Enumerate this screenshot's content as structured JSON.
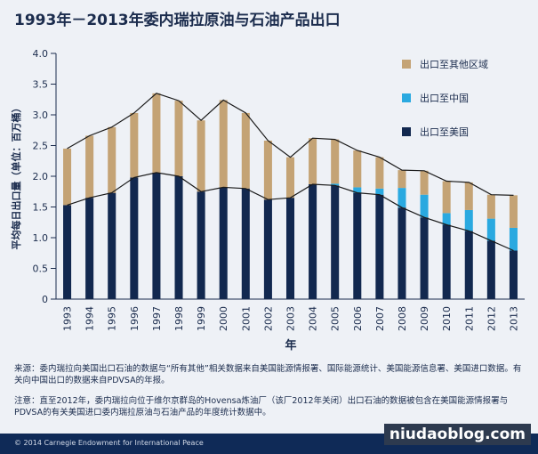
{
  "title": "1993年－2013年委内瑞拉原油与石油产品出口",
  "colors": {
    "background": "#eef1f6",
    "us": "#12284f",
    "china": "#2aa9e0",
    "other": "#c4a375",
    "line": "#1a1a1a",
    "footer": "#0f2a57"
  },
  "chart_data": {
    "type": "bar",
    "stacked": true,
    "xlabel": "年",
    "ylabel": "平均每日出口量（单位：百万桶）",
    "ylim": [
      0,
      4.0
    ],
    "yticks": [
      "0",
      "0.5",
      "1.0",
      "1.5",
      "2.0",
      "2.5",
      "3.0",
      "3.5",
      "4.0"
    ],
    "grid": false,
    "legend_placement": "top-right",
    "categories": [
      "1993",
      "1994",
      "1995",
      "1996",
      "1997",
      "1998",
      "1999",
      "2000",
      "2001",
      "2002",
      "2003",
      "2004",
      "2005",
      "2006",
      "2007",
      "2008",
      "2009",
      "2010",
      "2011",
      "2012",
      "2013"
    ],
    "series": [
      {
        "name": "出口至美国",
        "color": "#12284f",
        "values": [
          1.53,
          1.65,
          1.73,
          1.98,
          2.06,
          2.0,
          1.75,
          1.82,
          1.8,
          1.62,
          1.65,
          1.87,
          1.85,
          1.73,
          1.7,
          1.49,
          1.33,
          1.21,
          1.11,
          0.95,
          0.79
        ]
      },
      {
        "name": "出口至中国",
        "color": "#2aa9e0",
        "values": [
          0,
          0,
          0,
          0,
          0,
          0,
          0,
          0,
          0,
          0,
          0,
          0,
          0.03,
          0.09,
          0.1,
          0.32,
          0.37,
          0.19,
          0.34,
          0.36,
          0.37
        ]
      },
      {
        "name": "出口至其他区域",
        "color": "#c4a375",
        "values": [
          0.92,
          1.01,
          1.07,
          1.05,
          1.29,
          1.23,
          1.16,
          1.42,
          1.23,
          0.96,
          0.66,
          0.75,
          0.72,
          0.6,
          0.51,
          0.29,
          0.39,
          0.52,
          0.45,
          0.39,
          0.53
        ]
      }
    ]
  },
  "legend": [
    {
      "label": "出口至其他区域",
      "color": "#c4a375"
    },
    {
      "label": "出口至中国",
      "color": "#2aa9e0"
    },
    {
      "label": "出口至美国",
      "color": "#12284f"
    }
  ],
  "notes": {
    "source": "来源：委内瑞拉向美国出口石油的数据与“所有其他”相关数据来自美国能源情报署、国际能源统计、美国能源信息署、美国进口数据。有关向中国出口的数据来自PDVSA的年报。",
    "note": "注意：直至2012年，委内瑞拉向位于维尔京群岛的Hovensa炼油厂（该厂2012年关闭）出口石油的数据被包含在美国能源情报署与PDVSA的有关美国进口委内瑞拉原油与石油产品的年度统计数据中。"
  },
  "footer": {
    "copyright": "© 2014 Carnegie Endowment for International Peace",
    "watermark": "niudaoblog.com"
  }
}
